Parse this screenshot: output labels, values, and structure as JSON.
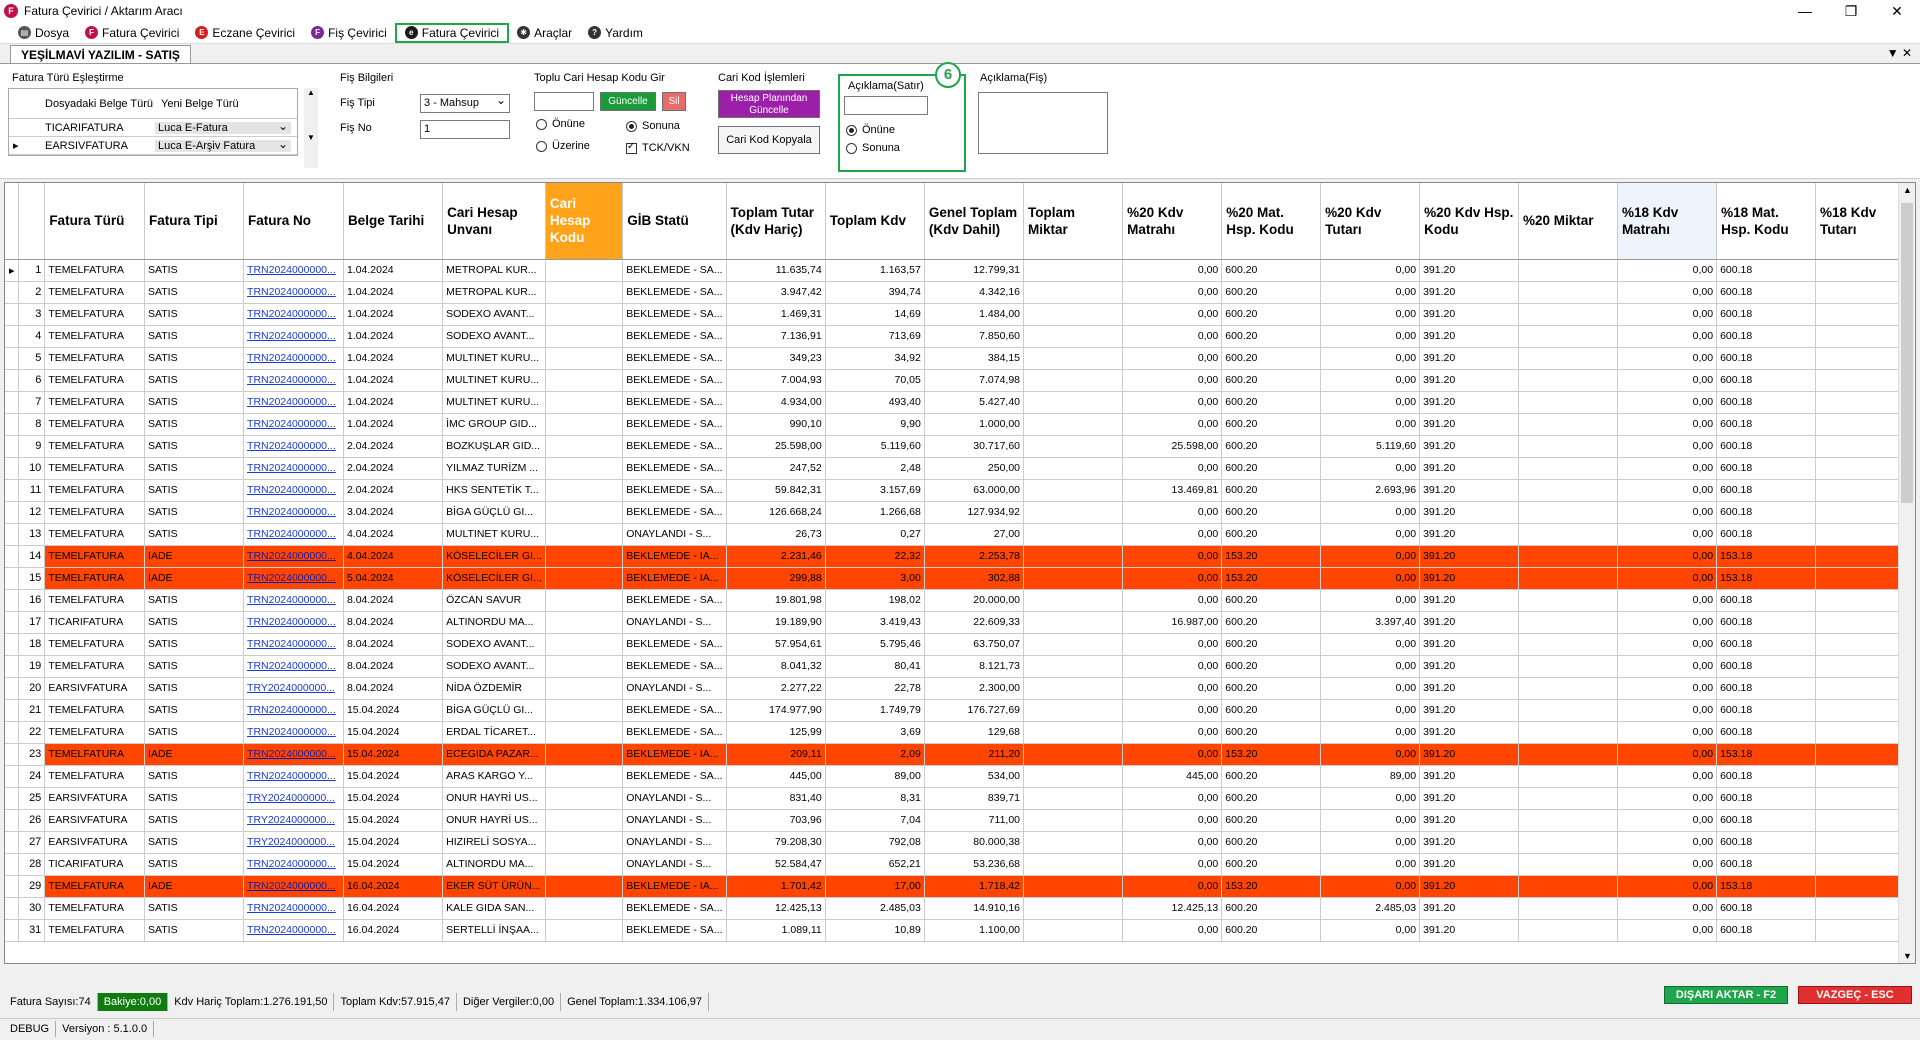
{
  "window": {
    "title": "Fatura Çevirici / Aktarım Aracı",
    "icon_letter": "F"
  },
  "menu": [
    {
      "label": "Dosya",
      "icon": "document-icon",
      "color": "#555555",
      "letter": "▤"
    },
    {
      "label": "Fatura Çevirici",
      "icon": "f-icon",
      "color": "#c0104a",
      "letter": "F"
    },
    {
      "label": "Eczane Çevirici",
      "icon": "e-icon",
      "color": "#d81b1b",
      "letter": "E"
    },
    {
      "label": "Fiş Çevirici",
      "icon": "f-purple-icon",
      "color": "#7a2a9a",
      "letter": "F"
    },
    {
      "label": "Fatura Çevirici",
      "icon": "e-script-icon",
      "color": "#1a1a1a",
      "letter": "e"
    },
    {
      "label": "Araçlar",
      "icon": "tools-icon",
      "color": "#333333",
      "letter": "✱"
    },
    {
      "label": "Yardım",
      "icon": "help-icon",
      "color": "#333333",
      "letter": "?"
    }
  ],
  "tab": {
    "label": "YEŞİLMAVİ YAZILIM - SATIŞ"
  },
  "fatura_turu": {
    "title": "Fatura Türü Eşleştirme",
    "col1": "Dosyadaki Belge Türü",
    "col2": "Yeni Belge Türü",
    "rows": [
      {
        "src": "TICARIFATURA",
        "dst": "Luca E-Fatura"
      },
      {
        "src": "EARSIVFATURA",
        "dst": "Luca E-Arşiv Fatura"
      }
    ]
  },
  "fis": {
    "title": "Fiş Bilgileri",
    "tip_label": "Fiş Tipi",
    "tip_value": "3 - Mahsup",
    "no_label": "Fiş No",
    "no_value": "1"
  },
  "toplu": {
    "title": "Toplu Cari Hesap Kodu Gir",
    "update": "Güncelle",
    "delete": "Sil",
    "onune": "Önüne",
    "sonuna": "Sonuna",
    "uzerine": "Üzerine",
    "tck": "TCK/VKN"
  },
  "cari": {
    "title": "Cari Kod İşlemleri",
    "hesap_btn": "Hesap Planından Güncelle",
    "kopyala_btn": "Cari Kod Kopyala"
  },
  "aciklama_satir": {
    "title": "Açıklama(Satır)",
    "onune": "Önüne",
    "sonuna": "Sonuna",
    "badge": "6"
  },
  "aciklama_fis": {
    "title": "Açıklama(Fiş)"
  },
  "grid": {
    "headers": [
      "Fatura Türü",
      "Fatura Tipi",
      "Fatura No",
      "Belge Tarihi",
      "Cari Hesap Unvanı",
      "Cari Hesap Kodu",
      "GİB Statü",
      "Toplam Tutar (Kdv Hariç)",
      "Toplam Kdv",
      "Genel Toplam (Kdv Dahil)",
      "Toplam Miktar",
      "%20 Kdv Matrahı",
      "%20 Mat. Hsp. Kodu",
      "%20 Kdv Tutarı",
      "%20 Kdv Hsp. Kodu",
      "%20 Miktar",
      "%18 Kdv Matrahı",
      "%18 Mat. Hsp. Kodu",
      "%18 Kdv Tutarı"
    ],
    "rows": [
      [
        "1",
        "TEMELFATURA",
        "SATIS",
        "TRN2024000000...",
        "1.04.2024",
        "METROPAL KUR...",
        "",
        "BEKLEMEDE - SA...",
        "11.635,74",
        "1.163,57",
        "12.799,31",
        "",
        "0,00",
        "600.20",
        "0,00",
        "391.20",
        "",
        "0,00",
        "600.18",
        ""
      ],
      [
        "2",
        "TEMELFATURA",
        "SATIS",
        "TRN2024000000...",
        "1.04.2024",
        "METROPAL KUR...",
        "",
        "BEKLEMEDE - SA...",
        "3.947,42",
        "394,74",
        "4.342,16",
        "",
        "0,00",
        "600.20",
        "0,00",
        "391.20",
        "",
        "0,00",
        "600.18",
        ""
      ],
      [
        "3",
        "TEMELFATURA",
        "SATIS",
        "TRN2024000000...",
        "1.04.2024",
        "SODEXO AVANT...",
        "",
        "BEKLEMEDE - SA...",
        "1.469,31",
        "14,69",
        "1.484,00",
        "",
        "0,00",
        "600.20",
        "0,00",
        "391.20",
        "",
        "0,00",
        "600.18",
        ""
      ],
      [
        "4",
        "TEMELFATURA",
        "SATIS",
        "TRN2024000000...",
        "1.04.2024",
        "SODEXO AVANT...",
        "",
        "BEKLEMEDE - SA...",
        "7.136,91",
        "713,69",
        "7.850,60",
        "",
        "0,00",
        "600.20",
        "0,00",
        "391.20",
        "",
        "0,00",
        "600.18",
        ""
      ],
      [
        "5",
        "TEMELFATURA",
        "SATIS",
        "TRN2024000000...",
        "1.04.2024",
        "MULTINET KURU...",
        "",
        "BEKLEMEDE - SA...",
        "349,23",
        "34,92",
        "384,15",
        "",
        "0,00",
        "600.20",
        "0,00",
        "391.20",
        "",
        "0,00",
        "600.18",
        ""
      ],
      [
        "6",
        "TEMELFATURA",
        "SATIS",
        "TRN2024000000...",
        "1.04.2024",
        "MULTINET KURU...",
        "",
        "BEKLEMEDE - SA...",
        "7.004,93",
        "70,05",
        "7.074,98",
        "",
        "0,00",
        "600.20",
        "0,00",
        "391.20",
        "",
        "0,00",
        "600.18",
        ""
      ],
      [
        "7",
        "TEMELFATURA",
        "SATIS",
        "TRN2024000000...",
        "1.04.2024",
        "MULTINET KURU...",
        "",
        "BEKLEMEDE - SA...",
        "4.934,00",
        "493,40",
        "5.427,40",
        "",
        "0,00",
        "600.20",
        "0,00",
        "391.20",
        "",
        "0,00",
        "600.18",
        ""
      ],
      [
        "8",
        "TEMELFATURA",
        "SATIS",
        "TRN2024000000...",
        "1.04.2024",
        "İMC GROUP GID...",
        "",
        "BEKLEMEDE - SA...",
        "990,10",
        "9,90",
        "1.000,00",
        "",
        "0,00",
        "600.20",
        "0,00",
        "391.20",
        "",
        "0,00",
        "600.18",
        ""
      ],
      [
        "9",
        "TEMELFATURA",
        "SATIS",
        "TRN2024000000...",
        "2.04.2024",
        "BOZKUŞLAR GID...",
        "",
        "BEKLEMEDE - SA...",
        "25.598,00",
        "5.119,60",
        "30.717,60",
        "",
        "25.598,00",
        "600.20",
        "5.119,60",
        "391.20",
        "",
        "0,00",
        "600.18",
        ""
      ],
      [
        "10",
        "TEMELFATURA",
        "SATIS",
        "TRN2024000000...",
        "2.04.2024",
        "YILMAZ TURİZM ...",
        "",
        "BEKLEMEDE - SA...",
        "247,52",
        "2,48",
        "250,00",
        "",
        "0,00",
        "600.20",
        "0,00",
        "391.20",
        "",
        "0,00",
        "600.18",
        ""
      ],
      [
        "11",
        "TEMELFATURA",
        "SATIS",
        "TRN2024000000...",
        "2.04.2024",
        "HKS SENTETİK T...",
        "",
        "BEKLEMEDE - SA...",
        "59.842,31",
        "3.157,69",
        "63.000,00",
        "",
        "13.469,81",
        "600.20",
        "2.693,96",
        "391.20",
        "",
        "0,00",
        "600.18",
        ""
      ],
      [
        "12",
        "TEMELFATURA",
        "SATIS",
        "TRN2024000000...",
        "3.04.2024",
        "BİGA GÜÇLÜ GI...",
        "",
        "BEKLEMEDE - SA...",
        "126.668,24",
        "1.266,68",
        "127.934,92",
        "",
        "0,00",
        "600.20",
        "0,00",
        "391.20",
        "",
        "0,00",
        "600.18",
        ""
      ],
      [
        "13",
        "TEMELFATURA",
        "SATIS",
        "TRN2024000000...",
        "4.04.2024",
        "MULTINET KURU...",
        "",
        "ONAYLANDI - S...",
        "26,73",
        "0,27",
        "27,00",
        "",
        "0,00",
        "600.20",
        "0,00",
        "391.20",
        "",
        "0,00",
        "600.18",
        ""
      ],
      [
        "14",
        "TEMELFATURA",
        "IADE",
        "TRN2024000000...",
        "4.04.2024",
        "KÖSELECİLER GI...",
        "",
        "BEKLEMEDE - IA...",
        "2.231,46",
        "22,32",
        "2.253,78",
        "",
        "0,00",
        "153.20",
        "0,00",
        "391.20",
        "",
        "0,00",
        "153.18",
        ""
      ],
      [
        "15",
        "TEMELFATURA",
        "IADE",
        "TRN2024000000...",
        "5.04.2024",
        "KÖSELECİLER GI...",
        "",
        "BEKLEMEDE - IA...",
        "299,88",
        "3,00",
        "302,88",
        "",
        "0,00",
        "153.20",
        "0,00",
        "391.20",
        "",
        "0,00",
        "153.18",
        ""
      ],
      [
        "16",
        "TEMELFATURA",
        "SATIS",
        "TRN2024000000...",
        "8.04.2024",
        "ÖZCAN SAVUR",
        "",
        "BEKLEMEDE - SA...",
        "19.801,98",
        "198,02",
        "20.000,00",
        "",
        "0,00",
        "600.20",
        "0,00",
        "391.20",
        "",
        "0,00",
        "600.18",
        ""
      ],
      [
        "17",
        "TICARIFATURA",
        "SATIS",
        "TRN2024000000...",
        "8.04.2024",
        "ALTINORDU MA...",
        "",
        "ONAYLANDI - S...",
        "19.189,90",
        "3.419,43",
        "22.609,33",
        "",
        "16.987,00",
        "600.20",
        "3.397,40",
        "391.20",
        "",
        "0,00",
        "600.18",
        ""
      ],
      [
        "18",
        "TEMELFATURA",
        "SATIS",
        "TRN2024000000...",
        "8.04.2024",
        "SODEXO AVANT...",
        "",
        "BEKLEMEDE - SA...",
        "57.954,61",
        "5.795,46",
        "63.750,07",
        "",
        "0,00",
        "600.20",
        "0,00",
        "391.20",
        "",
        "0,00",
        "600.18",
        ""
      ],
      [
        "19",
        "TEMELFATURA",
        "SATIS",
        "TRN2024000000...",
        "8.04.2024",
        "SODEXO AVANT...",
        "",
        "BEKLEMEDE - SA...",
        "8.041,32",
        "80,41",
        "8.121,73",
        "",
        "0,00",
        "600.20",
        "0,00",
        "391.20",
        "",
        "0,00",
        "600.18",
        ""
      ],
      [
        "20",
        "EARSIVFATURA",
        "SATIS",
        "TRY2024000000...",
        "8.04.2024",
        "NİDA ÖZDEMİR",
        "",
        "ONAYLANDI - S...",
        "2.277,22",
        "22,78",
        "2.300,00",
        "",
        "0,00",
        "600.20",
        "0,00",
        "391.20",
        "",
        "0,00",
        "600.18",
        ""
      ],
      [
        "21",
        "TEMELFATURA",
        "SATIS",
        "TRN2024000000...",
        "15.04.2024",
        "BİGA GÜÇLÜ GI...",
        "",
        "BEKLEMEDE - SA...",
        "174.977,90",
        "1.749,79",
        "176.727,69",
        "",
        "0,00",
        "600.20",
        "0,00",
        "391.20",
        "",
        "0,00",
        "600.18",
        ""
      ],
      [
        "22",
        "TEMELFATURA",
        "SATIS",
        "TRN2024000000...",
        "15.04.2024",
        "ERDAL TİCARET...",
        "",
        "BEKLEMEDE - SA...",
        "125,99",
        "3,69",
        "129,68",
        "",
        "0,00",
        "600.20",
        "0,00",
        "391.20",
        "",
        "0,00",
        "600.18",
        ""
      ],
      [
        "23",
        "TEMELFATURA",
        "IADE",
        "TRN2024000000...",
        "15.04.2024",
        "ECEGIDA PAZAR...",
        "",
        "BEKLEMEDE - IA...",
        "209,11",
        "2,09",
        "211,20",
        "",
        "0,00",
        "153.20",
        "0,00",
        "391.20",
        "",
        "0,00",
        "153.18",
        ""
      ],
      [
        "24",
        "TEMELFATURA",
        "SATIS",
        "TRN2024000000...",
        "15.04.2024",
        "ARAS KARGO Y...",
        "",
        "BEKLEMEDE - SA...",
        "445,00",
        "89,00",
        "534,00",
        "",
        "445,00",
        "600.20",
        "89,00",
        "391.20",
        "",
        "0,00",
        "600.18",
        ""
      ],
      [
        "25",
        "EARSIVFATURA",
        "SATIS",
        "TRY2024000000...",
        "15.04.2024",
        "ONUR HAYRİ US...",
        "",
        "ONAYLANDI - S...",
        "831,40",
        "8,31",
        "839,71",
        "",
        "0,00",
        "600.20",
        "0,00",
        "391.20",
        "",
        "0,00",
        "600.18",
        ""
      ],
      [
        "26",
        "EARSIVFATURA",
        "SATIS",
        "TRY2024000000...",
        "15.04.2024",
        "ONUR HAYRİ US...",
        "",
        "ONAYLANDI - S...",
        "703,96",
        "7,04",
        "711,00",
        "",
        "0,00",
        "600.20",
        "0,00",
        "391.20",
        "",
        "0,00",
        "600.18",
        ""
      ],
      [
        "27",
        "EARSIVFATURA",
        "SATIS",
        "TRY2024000000...",
        "15.04.2024",
        "HIZIRELİ SOSYA...",
        "",
        "ONAYLANDI - S...",
        "79.208,30",
        "792,08",
        "80.000,38",
        "",
        "0,00",
        "600.20",
        "0,00",
        "391.20",
        "",
        "0,00",
        "600.18",
        ""
      ],
      [
        "28",
        "TICARIFATURA",
        "SATIS",
        "TRN2024000000...",
        "15.04.2024",
        "ALTINORDU MA...",
        "",
        "ONAYLANDI - S...",
        "52.584,47",
        "652,21",
        "53.236,68",
        "",
        "0,00",
        "600.20",
        "0,00",
        "391.20",
        "",
        "0,00",
        "600.18",
        ""
      ],
      [
        "29",
        "TEMELFATURA",
        "IADE",
        "TRN2024000000...",
        "16.04.2024",
        "EKER SÜT ÜRÜN...",
        "",
        "BEKLEMEDE - IA...",
        "1.701,42",
        "17,00",
        "1.718,42",
        "",
        "0,00",
        "153.20",
        "0,00",
        "391.20",
        "",
        "0,00",
        "153.18",
        ""
      ],
      [
        "30",
        "TEMELFATURA",
        "SATIS",
        "TRN2024000000...",
        "16.04.2024",
        "KALE GIDA SAN...",
        "",
        "BEKLEMEDE - SA...",
        "12.425,13",
        "2.485,03",
        "14.910,16",
        "",
        "12.425,13",
        "600.20",
        "2.485,03",
        "391.20",
        "",
        "0,00",
        "600.18",
        ""
      ],
      [
        "31",
        "TEMELFATURA",
        "SATIS",
        "TRN2024000000...",
        "16.04.2024",
        "SERTELLİ İNŞAA...",
        "",
        "BEKLEMEDE - SA...",
        "1.089,11",
        "10,89",
        "1.100,00",
        "",
        "0,00",
        "600.20",
        "0,00",
        "391.20",
        "",
        "0,00",
        "600.18",
        ""
      ]
    ]
  },
  "status": {
    "fatura_sayisi": "Fatura Sayısı:74",
    "bakiye": "Bakiye:0,00",
    "kdv_haric": "Kdv Hariç Toplam:1.276.191,50",
    "toplam_kdv": "Toplam Kdv:57.915,47",
    "diger": "Diğer Vergiler:0,00",
    "genel": "Genel Toplam:1.334.106,97",
    "export_btn": "DIŞARI AKTAR - F2",
    "cancel_btn": "VAZGEÇ - ESC"
  },
  "footer": {
    "mode": "DEBUG",
    "version": "Versiyon : 5.1.0.0"
  },
  "colors": {
    "iade_row": "#ff4500",
    "highlight_header": "#ffa31a",
    "export_btn": "#1fa54a",
    "cancel_btn": "#e03030"
  }
}
